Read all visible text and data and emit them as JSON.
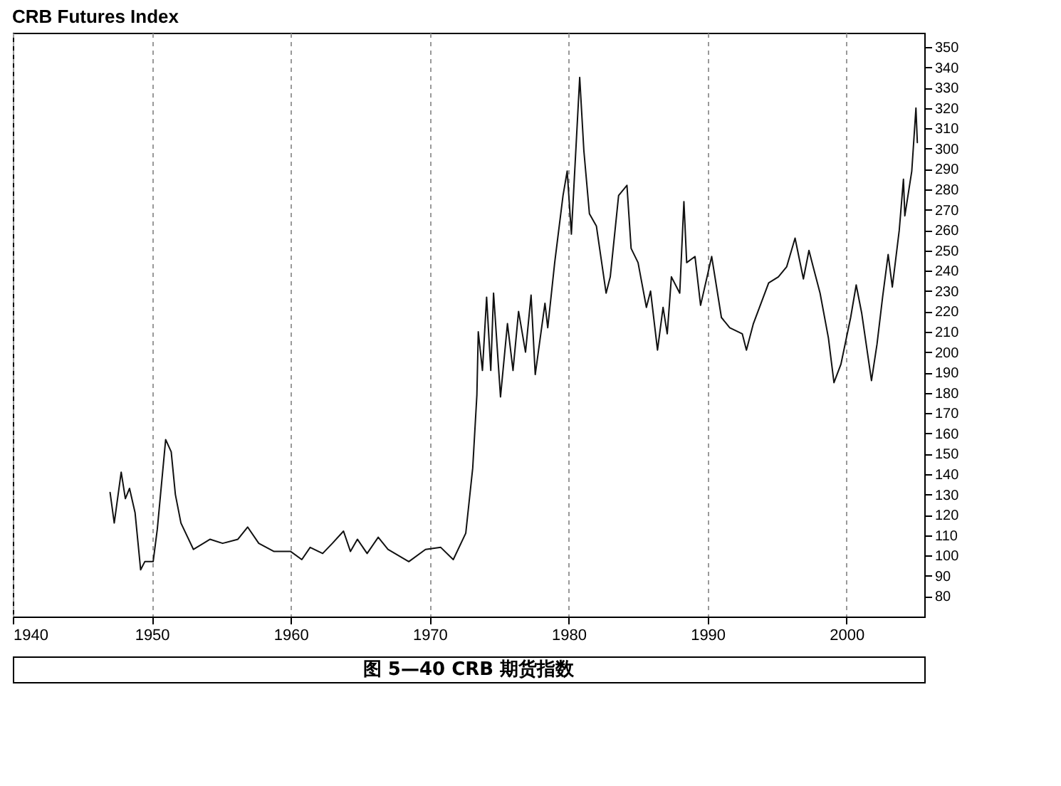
{
  "chart_data": {
    "type": "line",
    "title": "CRB Futures Index",
    "annotations": [
      "图 5—40 CRB 期货指数"
    ],
    "xlim": [
      1940,
      2005.6
    ],
    "ylim": [
      70,
      357
    ],
    "xticks": [
      1940,
      1950,
      1960,
      1970,
      1980,
      1990,
      2000
    ],
    "yticks": [
      80,
      90,
      100,
      110,
      120,
      130,
      140,
      150,
      160,
      170,
      180,
      190,
      200,
      210,
      220,
      230,
      240,
      250,
      260,
      270,
      280,
      290,
      300,
      310,
      320,
      330,
      340,
      350
    ],
    "grid": "x",
    "line_style": "solid",
    "series": [
      {
        "color": "#111111",
        "x": [
          1947.0,
          1947.3,
          1947.8,
          1948.1,
          1948.4,
          1948.8,
          1949.2,
          1949.5,
          1950.1,
          1950.4,
          1951.0,
          1951.4,
          1951.7,
          1952.1,
          1953.0,
          1954.2,
          1955.1,
          1956.2,
          1956.9,
          1957.7,
          1958.8,
          1960.0,
          1960.8,
          1961.4,
          1962.3,
          1963.0,
          1963.8,
          1964.3,
          1964.8,
          1965.5,
          1966.3,
          1967.0,
          1968.5,
          1969.7,
          1970.8,
          1971.7,
          1972.6,
          1973.1,
          1973.4,
          1973.5,
          1973.8,
          1974.1,
          1974.4,
          1974.6,
          1975.1,
          1975.6,
          1976.0,
          1976.4,
          1976.9,
          1977.3,
          1977.6,
          1978.3,
          1978.5,
          1979.0,
          1979.6,
          1979.9,
          1980.2,
          1980.8,
          1981.1,
          1981.5,
          1982.0,
          1982.7,
          1983.0,
          1983.6,
          1984.2,
          1984.5,
          1985.0,
          1985.6,
          1985.9,
          1986.4,
          1986.8,
          1987.1,
          1987.4,
          1988.0,
          1988.3,
          1988.5,
          1989.1,
          1989.5,
          1990.3,
          1991.0,
          1991.6,
          1992.5,
          1992.8,
          1993.3,
          1994.4,
          1995.1,
          1995.7,
          1996.3,
          1996.9,
          1997.3,
          1997.6,
          1998.1,
          1998.7,
          1999.1,
          1999.6,
          2000.3,
          2000.7,
          2001.1,
          2001.8,
          2002.2,
          2002.6,
          2003.0,
          2003.3,
          2003.8,
          2004.1,
          2004.2,
          2004.7,
          2005.0,
          2005.1
        ],
        "values": [
          131,
          116,
          141,
          128,
          133,
          121,
          93,
          97,
          97,
          113,
          157,
          151,
          130,
          116,
          103,
          108,
          106,
          108,
          114,
          106,
          102,
          102,
          98,
          104,
          101,
          106,
          112,
          102,
          108,
          101,
          109,
          103,
          97,
          103,
          104,
          98,
          111,
          143,
          179,
          210,
          191,
          227,
          191,
          229,
          178,
          214,
          191,
          220,
          200,
          228,
          189,
          224,
          212,
          244,
          277,
          289,
          258,
          335,
          299,
          268,
          262,
          229,
          237,
          277,
          282,
          251,
          244,
          222,
          230,
          201,
          222,
          209,
          237,
          229,
          274,
          244,
          247,
          223,
          247,
          217,
          212,
          209,
          201,
          214,
          234,
          237,
          242,
          256,
          236,
          250,
          242,
          229,
          207,
          185,
          194,
          217,
          233,
          219,
          186,
          204,
          227,
          248,
          232,
          260,
          285,
          267,
          289,
          320,
          303
        ]
      }
    ]
  }
}
